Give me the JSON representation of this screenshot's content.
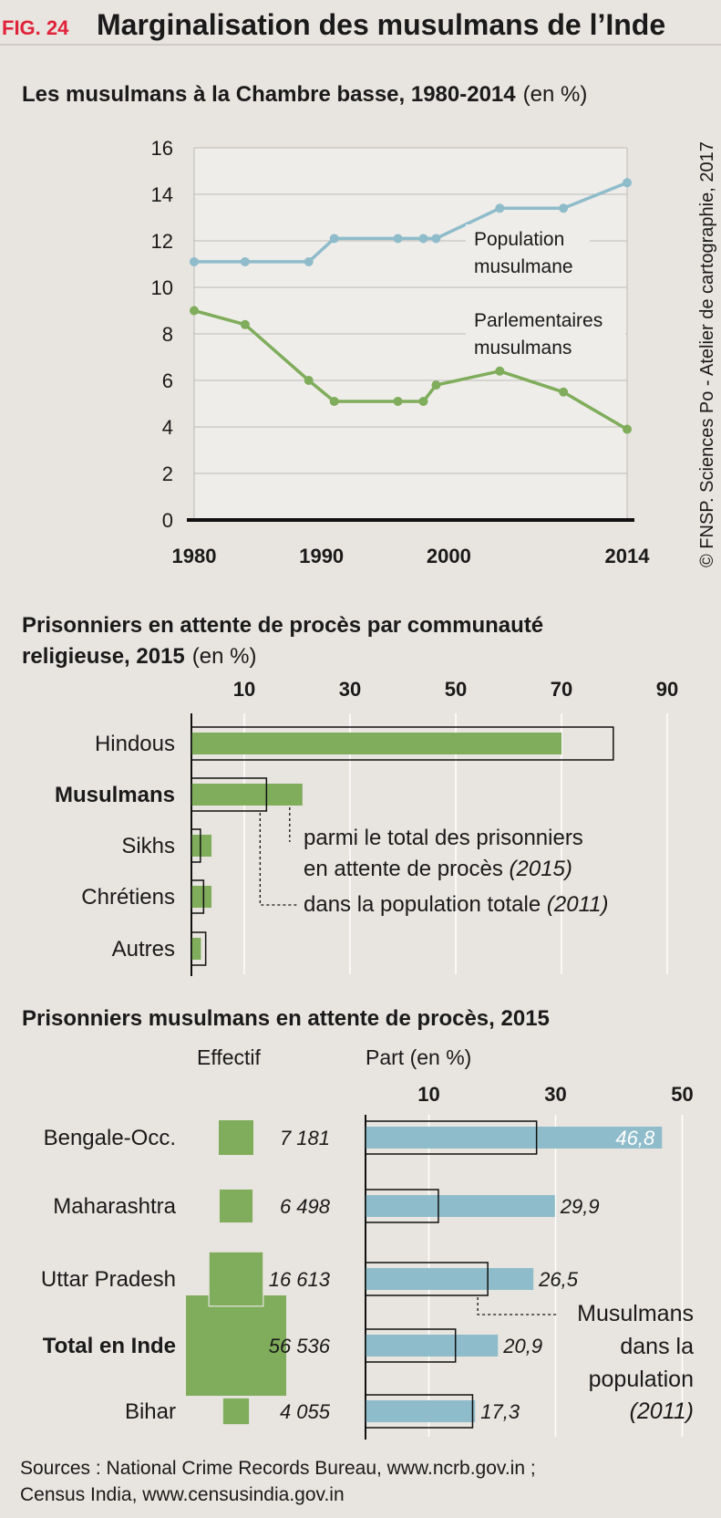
{
  "header": {
    "fig_label": "FIG. 24",
    "title": "Marginalisation des musulmans de l’Inde"
  },
  "credit": "© FNSP. Sciences Po - Atelier de cartographie, 2017",
  "sources": {
    "line1": "Sources : National Crime Records Bureau, www.ncrb.gov.in ;",
    "line2": "Census India, www.censusindia.gov.in"
  },
  "colors": {
    "green": "#7fad5b",
    "blue": "#8fbccb",
    "red": "#e0233a",
    "background": "#e8e4df",
    "plot_background": "#efedea"
  },
  "chart_data": [
    {
      "type": "line",
      "title": "Les musulmans à la Chambre basse, 1980-2014",
      "title_unit": "(en %)",
      "xlim": [
        1980,
        2014
      ],
      "ylim": [
        0,
        16
      ],
      "x_ticks": [
        "1980",
        "1990",
        "2000",
        "2014"
      ],
      "y_ticks": [
        "0",
        "2",
        "4",
        "6",
        "8",
        "10",
        "12",
        "14",
        "16"
      ],
      "grid": true,
      "series": [
        {
          "name": "Population musulmane",
          "label_lines": [
            "Population",
            "musulmane"
          ],
          "color": "#8fbccb",
          "points": [
            [
              1980,
              11.1
            ],
            [
              1984,
              11.1
            ],
            [
              1989,
              11.1
            ],
            [
              1991,
              12.1
            ],
            [
              1996,
              12.1
            ],
            [
              1998,
              12.1
            ],
            [
              1999,
              12.1
            ],
            [
              2004,
              13.4
            ],
            [
              2009,
              13.4
            ],
            [
              2014,
              14.5
            ]
          ]
        },
        {
          "name": "Parlementaires musulmans",
          "label_lines": [
            "Parlementaires",
            "musulmans"
          ],
          "color": "#7fad5b",
          "points": [
            [
              1980,
              9.0
            ],
            [
              1984,
              8.4
            ],
            [
              1989,
              6.0
            ],
            [
              1991,
              5.1
            ],
            [
              1996,
              5.1
            ],
            [
              1998,
              5.1
            ],
            [
              1999,
              5.8
            ],
            [
              2004,
              6.4
            ],
            [
              2009,
              5.5
            ],
            [
              2014,
              3.9
            ]
          ]
        }
      ]
    },
    {
      "type": "bar",
      "title_lines": [
        "Prisonniers en attente de procès par communauté",
        "religieuse, 2015"
      ],
      "title_unit": "(en %)",
      "xlim": [
        0,
        90
      ],
      "x_ticks": [
        "10",
        "30",
        "50",
        "70",
        "90"
      ],
      "categories": [
        "Hindous",
        "Musulmans",
        "Sikhs",
        "Chrétiens",
        "Autres"
      ],
      "series": [
        {
          "name": "parmi le total des prisonniers en attente de procès (2015)",
          "values": [
            70.0,
            21.0,
            3.8,
            3.8,
            1.8
          ]
        },
        {
          "name": "dans la population totale (2011)",
          "values": [
            79.8,
            14.2,
            1.7,
            2.3,
            2.7
          ]
        }
      ],
      "legend": {
        "bar_line1": "parmi le total des prisonniers",
        "bar_line2_plain": "en attente de procès ",
        "bar_line2_italic": "(2015)",
        "outline_plain": "dans la population totale ",
        "outline_italic": "(2011)"
      }
    },
    {
      "type": "bar",
      "title": "Prisonniers musulmans en attente de procès, 2015",
      "col_effectif": "Effectif",
      "col_part": "Part (en %)",
      "xlim": [
        0,
        50
      ],
      "x_ticks": [
        "10",
        "30",
        "50"
      ],
      "categories": [
        "Bengale-Occ.",
        "Maharashtra",
        "Uttar Pradesh",
        "Total en Inde",
        "Bihar"
      ],
      "effectif": [
        7181,
        6498,
        16613,
        56536,
        4055
      ],
      "effectif_labels": [
        "7 181",
        "6 498",
        "16 613",
        "56 536",
        "4 055"
      ],
      "series": [
        {
          "name": "Part",
          "values": [
            46.8,
            29.9,
            26.5,
            20.9,
            17.3
          ],
          "labels": [
            "46,8",
            "29,9",
            "26,5",
            "20,9",
            "17,3"
          ]
        },
        {
          "name": "Musulmans dans la population (2011)",
          "values": [
            27.0,
            11.5,
            19.3,
            14.2,
            16.9
          ]
        }
      ],
      "legend_lines": [
        "Musulmans",
        "dans la",
        "population",
        "(2011)"
      ]
    }
  ]
}
